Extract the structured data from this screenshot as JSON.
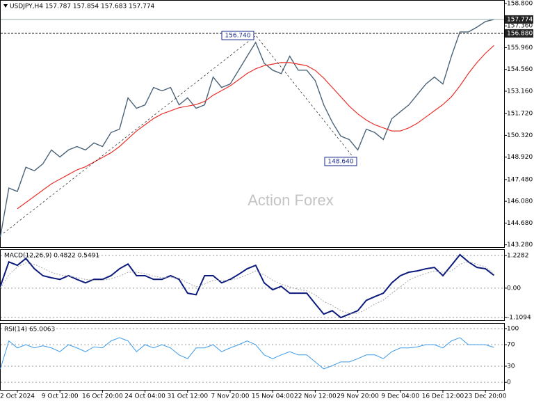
{
  "chart_data": [
    {
      "type": "line",
      "title": "USDJPY,H4 157.787 157.854 157.683 157.774",
      "watermark": "Action Forex",
      "ylim": [
        143.13,
        158.98
      ],
      "yticks": [
        {
          "value": 158.8,
          "label": "158.800"
        },
        {
          "value": 157.36,
          "label": "157.360"
        },
        {
          "value": 155.96,
          "label": "155.960"
        },
        {
          "value": 154.56,
          "label": "154.560"
        },
        {
          "value": 153.16,
          "label": "153.160"
        },
        {
          "value": 151.72,
          "label": "151.720"
        },
        {
          "value": 150.32,
          "label": "150.320"
        },
        {
          "value": 148.92,
          "label": "148.920"
        },
        {
          "value": 147.48,
          "label": "147.480"
        },
        {
          "value": 146.08,
          "label": "146.080"
        },
        {
          "value": 144.68,
          "label": "144.680"
        },
        {
          "value": 143.28,
          "label": "143.280"
        }
      ],
      "series": [
        {
          "name": "USDJPY",
          "color": "#4a6378",
          "width": 1.4,
          "values": [
            143.8,
            146.93,
            146.71,
            148.27,
            148.04,
            148.49,
            149.38,
            148.93,
            149.38,
            149.6,
            149.38,
            149.83,
            149.6,
            150.5,
            150.72,
            152.73,
            152.06,
            152.28,
            153.4,
            153.18,
            153.4,
            152.28,
            152.73,
            152.06,
            152.28,
            154.07,
            153.4,
            153.62,
            154.51,
            155.41,
            156.3,
            154.96,
            154.51,
            154.29,
            155.41,
            154.51,
            154.51,
            153.84,
            152.28,
            151.17,
            150.27,
            150.05,
            149.38,
            150.72,
            150.5,
            150.05,
            151.39,
            151.84,
            152.28,
            152.95,
            153.62,
            154.07,
            153.62,
            155.41,
            156.97,
            156.97,
            157.28,
            157.64,
            157.774
          ]
        },
        {
          "name": "MA",
          "color": "#e8302a",
          "width": 1.2,
          "values": [
            null,
            null,
            145.6,
            146.0,
            146.4,
            146.8,
            147.2,
            147.5,
            147.8,
            148.1,
            148.3,
            148.6,
            148.9,
            149.2,
            149.6,
            150.1,
            150.6,
            151.0,
            151.4,
            151.7,
            151.9,
            152.1,
            152.2,
            152.3,
            152.5,
            152.9,
            153.2,
            153.5,
            153.9,
            154.3,
            154.6,
            154.8,
            154.9,
            155.0,
            155.0,
            154.9,
            154.8,
            154.5,
            154.0,
            153.4,
            152.8,
            152.2,
            151.7,
            151.3,
            151.0,
            150.8,
            150.6,
            150.6,
            150.8,
            151.1,
            151.5,
            151.9,
            152.3,
            152.8,
            153.5,
            154.3,
            155.0,
            155.6,
            156.1
          ]
        }
      ],
      "annotations": [
        {
          "value": 156.74,
          "label": "156.740"
        },
        {
          "value": 148.64,
          "label": "148.640"
        }
      ],
      "price_lines": [
        {
          "value": 157.774,
          "label": "157.774"
        },
        {
          "value": 156.88,
          "label": "156.880"
        }
      ]
    },
    {
      "type": "line",
      "title": "MACD(12,26,9) 0.4822 0.5491",
      "ylim": [
        -1.21,
        1.44
      ],
      "yticks": [
        1.2282,
        {
          "value": 0,
          "label": "0.00"
        },
        -1.1094
      ],
      "grid": true,
      "series": [
        {
          "name": "MACD",
          "color": "#0b1a7c",
          "width": 2,
          "values": [
            0.07,
            0.99,
            0.86,
            1.12,
            0.73,
            0.47,
            0.39,
            0.33,
            0.47,
            0.33,
            0.2,
            0.33,
            0.33,
            0.47,
            0.73,
            0.91,
            0.47,
            0.47,
            0.33,
            0.33,
            0.47,
            0.33,
            -0.19,
            -0.25,
            0.47,
            0.47,
            0.2,
            0.33,
            0.52,
            0.73,
            0.86,
            0.2,
            -0.06,
            0.07,
            -0.19,
            -0.19,
            -0.19,
            -0.59,
            -0.98,
            -0.85,
            -1.11,
            -0.98,
            -0.85,
            -0.46,
            -0.32,
            -0.19,
            0.2,
            0.47,
            0.6,
            0.65,
            0.73,
            0.78,
            0.47,
            0.86,
            1.26,
            0.99,
            0.78,
            0.73,
            0.4822
          ]
        },
        {
          "name": "Signal",
          "color": "#a8a8a8",
          "width": 1,
          "dash": true,
          "values": [
            0.0,
            0.5,
            0.8,
            0.95,
            0.9,
            0.75,
            0.6,
            0.5,
            0.45,
            0.4,
            0.33,
            0.3,
            0.3,
            0.35,
            0.45,
            0.6,
            0.6,
            0.55,
            0.45,
            0.4,
            0.4,
            0.38,
            0.2,
            0.05,
            0.15,
            0.3,
            0.3,
            0.3,
            0.38,
            0.5,
            0.65,
            0.5,
            0.3,
            0.15,
            0.05,
            -0.05,
            -0.1,
            -0.25,
            -0.5,
            -0.65,
            -0.85,
            -0.95,
            -0.95,
            -0.8,
            -0.6,
            -0.45,
            -0.2,
            0.05,
            0.3,
            0.45,
            0.55,
            0.65,
            0.6,
            0.65,
            0.9,
            1.0,
            0.9,
            0.8,
            0.5491
          ]
        }
      ]
    },
    {
      "type": "line",
      "title": "RSI(14) 65.0063",
      "ylim": [
        -14,
        109
      ],
      "yticks": [
        100,
        70,
        30,
        0
      ],
      "grid": true,
      "categories": [
        null,
        null,
        "2 Oct 2024",
        null,
        null,
        null,
        null,
        "9 Oct 12:00",
        null,
        null,
        null,
        null,
        "16 Oct 20:00",
        null,
        null,
        null,
        null,
        "24 Oct 04:00",
        null,
        null,
        null,
        null,
        "31 Oct 12:00",
        null,
        null,
        null,
        null,
        "7 Nov 20:00",
        null,
        null,
        null,
        null,
        "15 Nov 04:00",
        null,
        null,
        null,
        null,
        "22 Nov 12:00",
        null,
        null,
        null,
        null,
        "29 Nov 20:00",
        null,
        null,
        null,
        null,
        "9 Dec 04:00",
        null,
        null,
        null,
        null,
        "16 Dec 12:00",
        null,
        null,
        null,
        null,
        "23 Dec 20:00",
        null
      ],
      "series": [
        {
          "name": "RSI",
          "color": "#3d9be9",
          "width": 1,
          "values": [
            25,
            77,
            64,
            70,
            64,
            68,
            64,
            57,
            70,
            64,
            57,
            66,
            64,
            77,
            83,
            77,
            57,
            70,
            64,
            70,
            64,
            51,
            44,
            64,
            64,
            70,
            57,
            64,
            70,
            77,
            70,
            51,
            44,
            51,
            57,
            51,
            51,
            38,
            25,
            31,
            38,
            38,
            44,
            51,
            51,
            44,
            57,
            64,
            64,
            66,
            70,
            70,
            64,
            77,
            83,
            70,
            70,
            70,
            65.0063
          ]
        }
      ]
    }
  ]
}
